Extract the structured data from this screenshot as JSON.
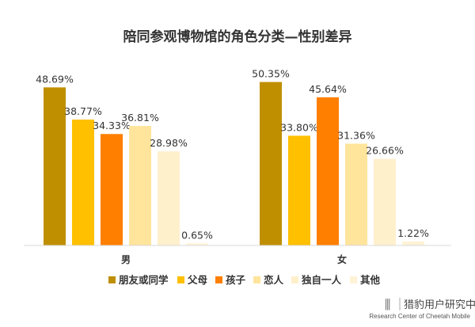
{
  "chart_data": {
    "type": "bar",
    "title": "陪同参观博物馆的角色分类—性别差异",
    "categories": [
      "男",
      "女"
    ],
    "series": [
      {
        "name": "朋友或同学",
        "values": [
          48.69,
          50.35
        ],
        "color": "#BF8F00"
      },
      {
        "name": "父母",
        "values": [
          38.77,
          33.8
        ],
        "color": "#FFC000"
      },
      {
        "name": "孩子",
        "values": [
          34.33,
          45.64
        ],
        "color": "#FF7F00"
      },
      {
        "name": "恋人",
        "values": [
          36.81,
          31.36
        ],
        "color": "#FFE49C"
      },
      {
        "name": "独自一人",
        "values": [
          28.98,
          26.66
        ],
        "color": "#FFF0CC"
      },
      {
        "name": "其他",
        "values": [
          0.65,
          1.22
        ],
        "color": "#FFF3D6"
      }
    ],
    "data_labels": [
      [
        "48.69%",
        "38.77%",
        "34.33%",
        "36.81%",
        "28.98%",
        "0.65%"
      ],
      [
        "50.35%",
        "33.80%",
        "45.64%",
        "31.36%",
        "26.66%",
        "1.22%"
      ]
    ],
    "unit": "%",
    "legend": "bottom",
    "grid": false
  },
  "logo": {
    "name": "猎豹用户研究中心",
    "subtitle": "Research Center of Cheetah Mobile"
  }
}
